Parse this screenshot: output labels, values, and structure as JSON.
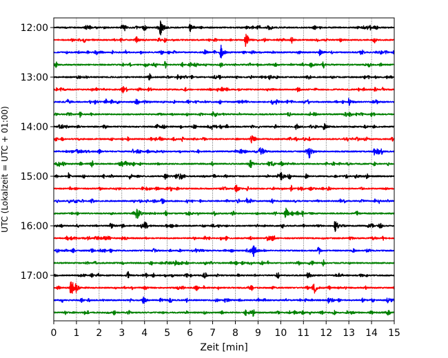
{
  "chart_data": {
    "type": "line",
    "xlabel": "Zeit  [min]",
    "ylabel": "UTC (Lokalzeit = UTC + 01:00)",
    "xlim": [
      0,
      15
    ],
    "x_ticks": [
      0,
      1,
      2,
      3,
      4,
      5,
      6,
      7,
      8,
      9,
      10,
      11,
      12,
      13,
      14,
      15
    ],
    "grid": "vertical dotted",
    "trace_interval_minutes": 15,
    "y_tick_labels": [
      "12:00",
      "13:00",
      "14:00",
      "15:00",
      "16:00",
      "17:00"
    ],
    "y_tick_trace_indices": [
      0,
      4,
      8,
      12,
      16,
      20
    ],
    "colors": [
      "#000000",
      "#ff0000",
      "#0000ff",
      "#008000"
    ],
    "series": [
      {
        "start": "12:00",
        "events": [
          {
            "t": 4.7,
            "a": 1.0
          },
          {
            "t": 6.0,
            "a": 0.5
          },
          {
            "t": 3.0,
            "a": 0.4
          }
        ]
      },
      {
        "start": "12:15",
        "events": [
          {
            "t": 8.45,
            "a": 0.8
          }
        ]
      },
      {
        "start": "12:30",
        "events": [
          {
            "t": 7.35,
            "a": 0.9
          },
          {
            "t": 11.7,
            "a": 0.35
          }
        ]
      },
      {
        "start": "12:45",
        "events": [
          {
            "t": 11.3,
            "a": 0.35
          },
          {
            "t": 4.0,
            "a": 0.2
          }
        ]
      },
      {
        "start": "13:00",
        "events": [
          {
            "t": 9.5,
            "a": 0.25
          }
        ]
      },
      {
        "start": "13:15",
        "events": [
          {
            "t": 7.4,
            "a": 0.25
          }
        ]
      },
      {
        "start": "13:30",
        "events": [
          {
            "t": 13.0,
            "a": 0.4
          },
          {
            "t": 0.6,
            "a": 0.3
          },
          {
            "t": 1.8,
            "a": 0.25
          },
          {
            "t": 9.8,
            "a": 0.25
          }
        ]
      },
      {
        "start": "13:45",
        "events": [
          {
            "t": 7.0,
            "a": 0.15
          }
        ]
      },
      {
        "start": "14:00",
        "events": [
          {
            "t": 11.9,
            "a": 0.4
          },
          {
            "t": 10.7,
            "a": 0.25
          }
        ]
      },
      {
        "start": "14:15",
        "events": [
          {
            "t": 12.8,
            "a": 0.15
          }
        ]
      },
      {
        "start": "14:30",
        "events": [
          {
            "t": 11.25,
            "a": 0.7
          },
          {
            "t": 14.1,
            "a": 0.6
          },
          {
            "t": 9.2,
            "a": 0.3
          },
          {
            "t": 1.0,
            "a": 0.25
          }
        ]
      },
      {
        "start": "14:45",
        "events": [
          {
            "t": 2.9,
            "a": 0.25
          },
          {
            "t": 8.7,
            "a": 0.2
          }
        ]
      },
      {
        "start": "15:00",
        "events": [
          {
            "t": 4.9,
            "a": 0.3
          },
          {
            "t": 10.0,
            "a": 0.3
          },
          {
            "t": 13.3,
            "a": 0.25
          }
        ]
      },
      {
        "start": "15:15",
        "events": [
          {
            "t": 8.0,
            "a": 0.25
          },
          {
            "t": 11.3,
            "a": 0.2
          }
        ]
      },
      {
        "start": "15:30",
        "events": [
          {
            "t": 8.5,
            "a": 0.3
          },
          {
            "t": 0.9,
            "a": 0.2
          },
          {
            "t": 13.5,
            "a": 0.2
          }
        ]
      },
      {
        "start": "15:45",
        "events": [
          {
            "t": 3.65,
            "a": 1.0
          },
          {
            "t": 10.2,
            "a": 0.3
          }
        ]
      },
      {
        "start": "16:00",
        "events": [
          {
            "t": 12.4,
            "a": 0.7
          },
          {
            "t": 4.0,
            "a": 0.4
          },
          {
            "t": 2.5,
            "a": 0.35
          }
        ]
      },
      {
        "start": "16:15",
        "events": [
          {
            "t": 9.4,
            "a": 0.35
          }
        ]
      },
      {
        "start": "16:30",
        "events": [
          {
            "t": 8.8,
            "a": 0.75
          }
        ]
      },
      {
        "start": "16:45",
        "events": [
          {
            "t": 8.3,
            "a": 0.15
          }
        ]
      },
      {
        "start": "17:00",
        "events": [
          {
            "t": 11.2,
            "a": 0.35
          }
        ]
      },
      {
        "start": "17:15",
        "events": [
          {
            "t": 0.75,
            "a": 1.0
          },
          {
            "t": 11.5,
            "a": 0.3
          }
        ]
      },
      {
        "start": "17:30",
        "events": [
          {
            "t": 14.7,
            "a": 0.3
          },
          {
            "t": 4.7,
            "a": 0.2
          }
        ]
      },
      {
        "start": "17:45",
        "events": [
          {
            "t": 10.6,
            "a": 0.2
          },
          {
            "t": 13.1,
            "a": 0.2
          }
        ]
      }
    ]
  }
}
